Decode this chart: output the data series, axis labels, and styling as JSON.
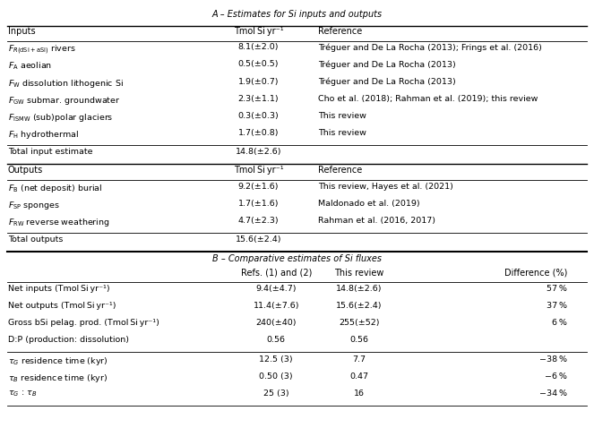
{
  "fig_width": 6.63,
  "fig_height": 4.78,
  "background_color": "#ffffff",
  "section_A_header": "A – Estimates for Si inputs and outputs",
  "section_B_header": "B – Comparative estimates of Si fluxes",
  "input_labels_math": [
    "$F_{R(\\mathrm{dSi+aSi})}$ rivers",
    "$F_{\\mathrm{A}}$ aeolian",
    "$F_{\\mathrm{W}}$ dissolution lithogenic Si",
    "$F_{\\mathrm{GW}}$ submar. groundwater",
    "$F_{\\mathrm{ISMW}}$ (sub)polar glaciers",
    "$F_{\\mathrm{H}}$ hydrothermal"
  ],
  "input_vals": [
    "8.1(±2.0)",
    "0.5(±0.5)",
    "1.9(±0.7)",
    "2.3(±1.1)",
    "0.3(±0.3)",
    "1.7(±0.8)"
  ],
  "input_refs": [
    "Tréguer and De La Rocha (2013); Frings et al. (2016)",
    "Tréguer and De La Rocha (2013)",
    "Tréguer and De La Rocha (2013)",
    "Cho et al. (2018); Rahman et al. (2019); this review",
    "This review",
    "This review"
  ],
  "total_input_label": "Total input estimate",
  "total_input_val": "14.8(±2.6)",
  "output_labels_math": [
    "$F_{\\mathrm{B}}$ (net deposit) burial",
    "$F_{\\mathrm{SP}}$ sponges",
    "$F_{\\mathrm{RW}}$ reverse weathering"
  ],
  "output_vals": [
    "9.2(±1.6)",
    "1.7(±1.6)",
    "4.7(±2.3)"
  ],
  "output_refs": [
    "This review, Hayes et al. (2021)",
    "Maldonado et al. (2019)",
    "Rahman et al. (2016, 2017)"
  ],
  "total_output_label": "Total outputs",
  "total_output_val": "15.6(±2.4)",
  "B_labels": [
    "Net inputs (Tmol Si yr⁻¹)",
    "Net outputs (Tmol Si yr⁻¹)",
    "Gross bSi pelag. prod. (Tmol Si yr⁻¹)",
    "D:P (production: dissolution)"
  ],
  "B_col2": [
    "9.4(±4.7)",
    "11.4(±7.6)",
    "240(±40)",
    "0.56"
  ],
  "B_col3": [
    "14.8(±2.6)",
    "15.6(±2.4)",
    "255(±52)",
    "0.56"
  ],
  "B_col4": [
    "57 %",
    "37 %",
    "6 %",
    ""
  ],
  "B2_labels_math": [
    "$\\tau_G$ residence time (kyr)",
    "$\\tau_B$ residence time (kyr)",
    "$\\tau_G$ : $\\tau_B$"
  ],
  "B2_col2": [
    "12.5 (3)",
    "0.50 (3)",
    "25 (3)"
  ],
  "B2_col3": [
    "7.7",
    "0.47",
    "16"
  ],
  "B2_col4": [
    "−38 %",
    "−6 %",
    "−34 %"
  ]
}
